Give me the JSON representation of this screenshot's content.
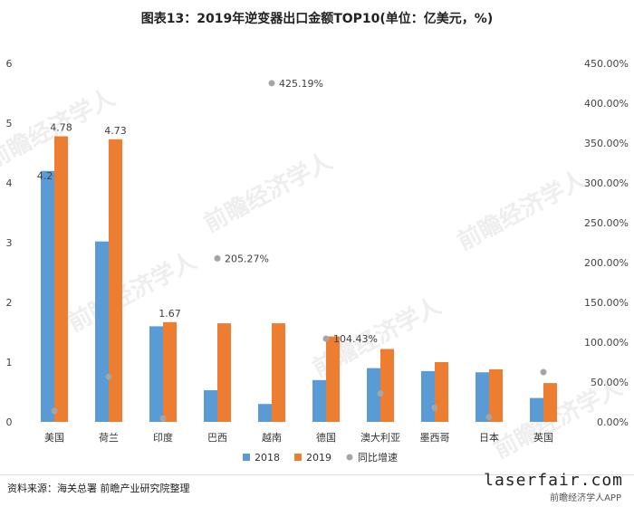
{
  "page": {
    "source": "资料来源：海关总署 前瞻产业研究院整理",
    "watermark": "laserfair.com",
    "app_label": "前瞻经济学人APP"
  },
  "chart_data": {
    "type": "bar",
    "title": "图表13：2019年逆变器出口金额TOP10(单位：亿美元，%)",
    "categories": [
      "美国",
      "荷兰",
      "印度",
      "巴西",
      "越南",
      "德国",
      "澳大利亚",
      "墨西哥",
      "日本",
      "英国"
    ],
    "series": [
      {
        "name": "2018",
        "type": "bar",
        "axis": "left",
        "color": "#5b9bd5",
        "values": [
          4.2,
          3.02,
          1.6,
          0.53,
          0.3,
          0.7,
          0.9,
          0.85,
          0.83,
          0.4
        ]
      },
      {
        "name": "2019",
        "type": "bar",
        "axis": "left",
        "color": "#ed7d31",
        "values": [
          4.78,
          4.73,
          1.67,
          1.65,
          1.65,
          1.43,
          1.22,
          1.0,
          0.88,
          0.65
        ]
      },
      {
        "name": "同比增速",
        "type": "scatter",
        "axis": "right",
        "color": "#a5a5a5",
        "values": [
          13.81,
          56.62,
          4.38,
          205.27,
          425.19,
          104.43,
          35.56,
          17.65,
          6.02,
          62.5
        ]
      }
    ],
    "data_labels": [
      {
        "series": 0,
        "index": 0,
        "text": "4.2"
      },
      {
        "series": 1,
        "index": 0,
        "text": "4.78"
      },
      {
        "series": 1,
        "index": 1,
        "text": "4.73"
      },
      {
        "series": 1,
        "index": 2,
        "text": "1.67"
      },
      {
        "series": 2,
        "index": 3,
        "text": "205.27%"
      },
      {
        "series": 2,
        "index": 4,
        "text": "425.19%"
      },
      {
        "series": 2,
        "index": 5,
        "text": "104.43%"
      }
    ],
    "y_left": {
      "min": 0,
      "max": 6,
      "ticks": [
        "0",
        "1",
        "2",
        "3",
        "4",
        "5",
        "6"
      ]
    },
    "y_right": {
      "min": 0,
      "max": 450,
      "ticks": [
        "0.00%",
        "50.00%",
        "100.00%",
        "150.00%",
        "200.00%",
        "250.00%",
        "300.00%",
        "350.00%",
        "400.00%",
        "450.00%"
      ]
    },
    "grid": false,
    "legend_position": "bottom"
  }
}
